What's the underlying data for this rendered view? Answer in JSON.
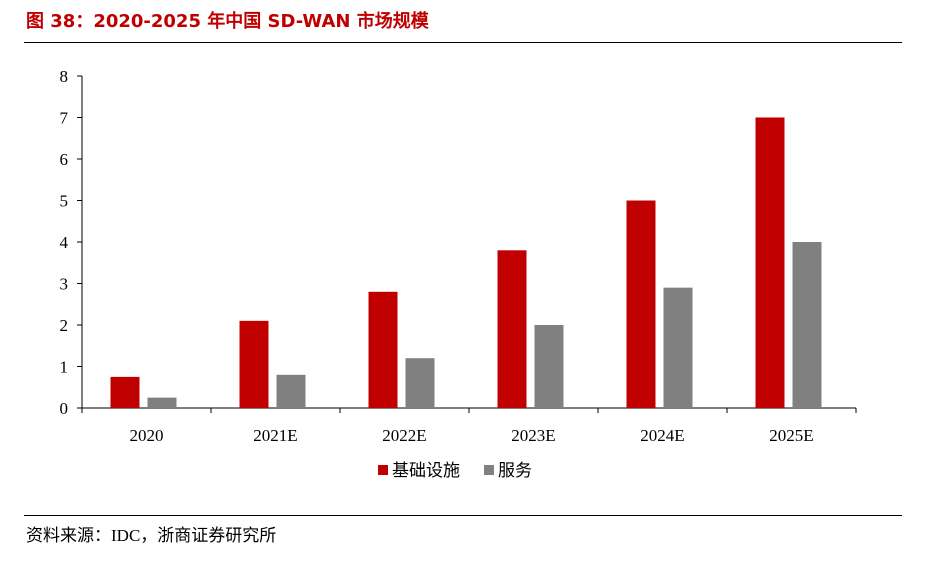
{
  "figure": {
    "title": "图 38：2020-2025 年中国 SD-WAN 市场规模",
    "source": "资料来源：IDC，浙商证券研究所"
  },
  "colors": {
    "title": "#c00000",
    "series_infra": "#c00000",
    "series_service": "#808080"
  },
  "chart_data": {
    "type": "bar",
    "title": "",
    "xlabel": "",
    "ylabel": "",
    "categories": [
      "2020",
      "2021E",
      "2022E",
      "2023E",
      "2024E",
      "2025E"
    ],
    "series": [
      {
        "name": "基础设施",
        "values": [
          0.75,
          2.1,
          2.8,
          3.8,
          5.0,
          7.0
        ]
      },
      {
        "name": "服务",
        "values": [
          0.25,
          0.8,
          1.2,
          2.0,
          2.9,
          4.0
        ]
      }
    ],
    "ylim": [
      0,
      8
    ],
    "yticks": [
      "0",
      "1",
      "2",
      "3",
      "4",
      "5",
      "6",
      "7",
      "8"
    ],
    "grid": false,
    "legend": "bottom-center"
  }
}
